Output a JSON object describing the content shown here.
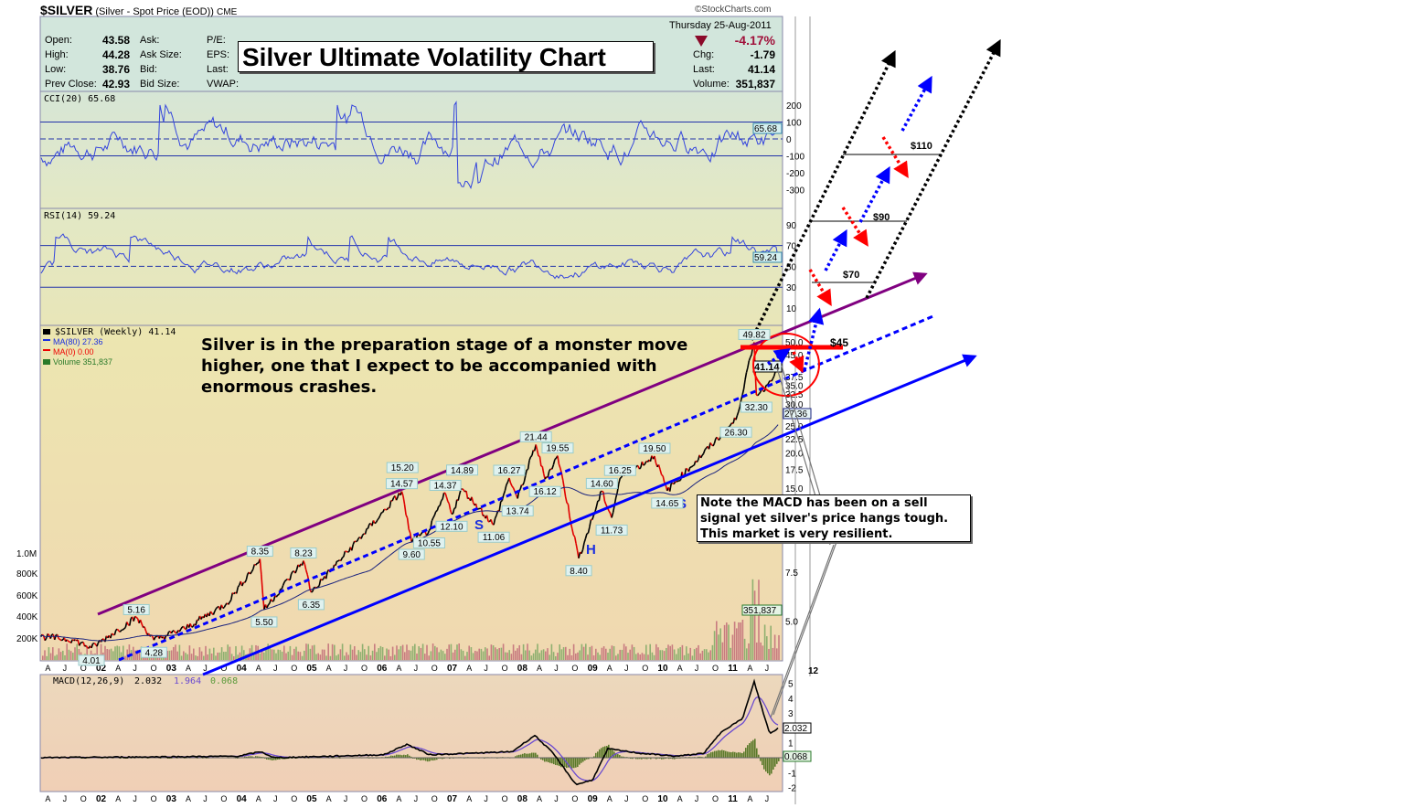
{
  "header": {
    "symbol": "$SILVER",
    "description": "(Silver - Spot Price (EOD))",
    "exchange": "CME",
    "copyright": "©StockCharts.com",
    "date": "Thursday  25-Aug-2011",
    "change_pct": "-4.17%",
    "fields_left": [
      {
        "label": "Open:",
        "value": "43.58"
      },
      {
        "label": "High:",
        "value": "44.28"
      },
      {
        "label": "Low:",
        "value": "38.76"
      },
      {
        "label": "Prev Close:",
        "value": "42.93"
      }
    ],
    "fields_mid": [
      "Ask:",
      "Ask Size:",
      "Bid:",
      "Bid Size:"
    ],
    "fields_mid2": [
      "P/E:",
      "EPS:",
      "Last:",
      "VWAP:"
    ],
    "fields_right": [
      {
        "label": "Chg:",
        "value": "-1.79"
      },
      {
        "label": "Last:",
        "value": "41.14"
      },
      {
        "label": "Volume:",
        "value": "351,837"
      }
    ],
    "title": "Silver Ultimate Volatility Chart"
  },
  "annotations": {
    "main_text": "Silver is in the preparation stage of  a monster move higher, one that I expect to be accompanied with enormous crashes.",
    "note": "Note the MACD has been on a sell signal yet silver's price hangs tough.  This market is very resilient.",
    "targets": [
      "$45",
      "$70",
      "$90",
      "$110"
    ],
    "pattern_labels": [
      "S",
      "H",
      "S"
    ]
  },
  "chart_data": [
    {
      "type": "line",
      "title": "CCI(20) 65.68",
      "current_value": "65.68",
      "y_ticks": [
        "200",
        "100",
        "0",
        "-100",
        "-200",
        "-300"
      ],
      "ylim": [
        -400,
        300
      ]
    },
    {
      "type": "line",
      "title": "RSI(14) 59.24",
      "current_value": "59.24",
      "y_ticks": [
        "90",
        "70",
        "50",
        "30",
        "10"
      ],
      "ylim": [
        0,
        100
      ]
    },
    {
      "type": "line",
      "title": "$SILVER (Weekly) 41.14",
      "legend": [
        "$SILVER (Weekly) 41.14",
        "MA(80) 27.36",
        "MA(0) 0.00",
        "Volume 351,837"
      ],
      "scale": "log",
      "ma_value": "27.36",
      "last_value": "41.14",
      "volume_tag": "351,837",
      "y_ticks": [
        "50.0",
        "45.0",
        "37.5",
        "35.0",
        "32.5",
        "30.0",
        "25.0",
        "22.5",
        "20.0",
        "17.5",
        "15.0",
        "7.5",
        "5.0"
      ],
      "y_tick_values": [
        50,
        45,
        37.5,
        35,
        32.5,
        30,
        25,
        22.5,
        20,
        17.5,
        15,
        7.5,
        5
      ],
      "volume_ticks": [
        "1.0M",
        "800K",
        "600K",
        "400K",
        "200K"
      ],
      "volume_tick_values": [
        1000000,
        800000,
        600000,
        400000,
        200000
      ],
      "pivots": [
        {
          "t": 2001.87,
          "price": 4.01,
          "label": "4.01",
          "pos": "below"
        },
        {
          "t": 2002.51,
          "price": 5.16,
          "label": "5.16",
          "pos": "above"
        },
        {
          "t": 2002.76,
          "price": 4.28,
          "label": "4.28",
          "pos": "below"
        },
        {
          "t": 2004.27,
          "price": 8.35,
          "label": "8.35",
          "pos": "above"
        },
        {
          "t": 2004.33,
          "price": 5.5,
          "label": "5.50",
          "pos": "below"
        },
        {
          "t": 2004.89,
          "price": 8.23,
          "label": "8.23",
          "pos": "above"
        },
        {
          "t": 2005.0,
          "price": 6.35,
          "label": "6.35",
          "pos": "below"
        },
        {
          "t": 2006.3,
          "price": 15.2,
          "label": "15.20",
          "pos": "above"
        },
        {
          "t": 2006.29,
          "price": 14.57,
          "label": "14.57",
          "pos": "above"
        },
        {
          "t": 2006.43,
          "price": 9.6,
          "label": "9.60",
          "pos": "below"
        },
        {
          "t": 2006.68,
          "price": 10.55,
          "label": "10.55",
          "pos": "below"
        },
        {
          "t": 2006.91,
          "price": 14.37,
          "label": "14.37",
          "pos": "above"
        },
        {
          "t": 2007.0,
          "price": 12.1,
          "label": "12.10",
          "pos": "below"
        },
        {
          "t": 2007.15,
          "price": 14.89,
          "label": "14.89",
          "pos": "above"
        },
        {
          "t": 2007.6,
          "price": 11.06,
          "label": "11.06",
          "pos": "below"
        },
        {
          "t": 2007.82,
          "price": 16.27,
          "label": "16.27",
          "pos": "above"
        },
        {
          "t": 2007.94,
          "price": 13.74,
          "label": "13.74",
          "pos": "below"
        },
        {
          "t": 2008.2,
          "price": 21.44,
          "label": "21.44",
          "pos": "above"
        },
        {
          "t": 2008.33,
          "price": 16.12,
          "label": "16.12",
          "pos": "below"
        },
        {
          "t": 2008.51,
          "price": 19.55,
          "label": "19.55",
          "pos": "above"
        },
        {
          "t": 2008.81,
          "price": 8.4,
          "label": "8.40",
          "pos": "below"
        },
        {
          "t": 2009.14,
          "price": 14.6,
          "label": "14.60",
          "pos": "above"
        },
        {
          "t": 2009.28,
          "price": 11.73,
          "label": "11.73",
          "pos": "below"
        },
        {
          "t": 2009.4,
          "price": 16.25,
          "label": "16.25",
          "pos": "above"
        },
        {
          "t": 2009.89,
          "price": 19.5,
          "label": "19.50",
          "pos": "above"
        },
        {
          "t": 2010.07,
          "price": 14.65,
          "label": "14.65",
          "pos": "below"
        },
        {
          "t": 2011.05,
          "price": 26.3,
          "label": "26.30",
          "pos": "below"
        },
        {
          "t": 2011.31,
          "price": 49.82,
          "label": "49.82",
          "pos": "above"
        },
        {
          "t": 2011.34,
          "price": 32.3,
          "label": "32.30",
          "pos": "below"
        }
      ],
      "x_years": [
        "02",
        "03",
        "04",
        "05",
        "06",
        "07",
        "08",
        "09",
        "10",
        "11",
        "12"
      ]
    },
    {
      "type": "line",
      "title": "MACD(12,26,9)",
      "legend": [
        "MACD(12,26,9) 2.032",
        "1.964",
        "0.068"
      ],
      "macd": "2.032",
      "signal": "1.964",
      "histogram": "0.068",
      "y_ticks": [
        "5",
        "4",
        "3",
        "1",
        "-1",
        "-2"
      ],
      "y_tick_values": [
        5,
        4,
        3,
        1,
        -1,
        -2
      ],
      "ylim": [
        -2.3,
        5.5
      ],
      "months": [
        "A",
        "J",
        "O"
      ]
    }
  ]
}
